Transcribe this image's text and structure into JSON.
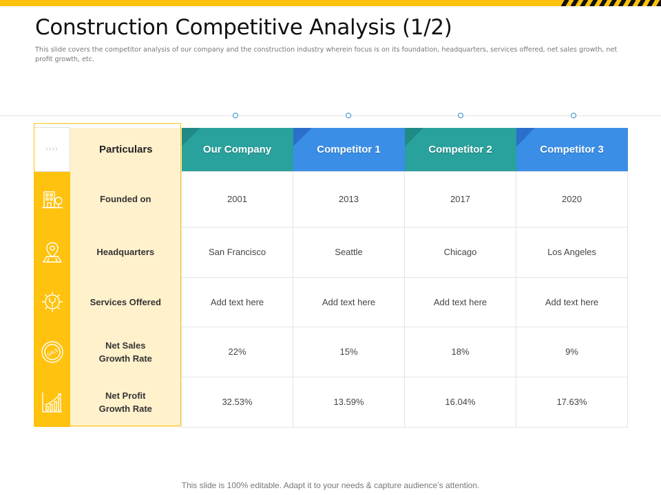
{
  "slide": {
    "title": "Construction Competitive Analysis (1/2)",
    "subtitle": "This slide covers the competitor analysis of our company and the construction industry wherein focus is on its foundation, headquarters, services offered, net sales growth, net profit growth, etc.",
    "footer": "This slide is 100% editable. Adapt it to your needs & capture audience’s attention."
  },
  "colors": {
    "accent_yellow": "#FFC20E",
    "light_yellow": "#FFF1CC",
    "teal": "#29A19C",
    "blue": "#3A8EE6"
  },
  "table": {
    "arrow_glyph": "››››",
    "header_label": "Particulars",
    "columns": [
      "Our Company",
      "Competitor 1",
      "Competitor 2",
      "Competitor 3"
    ],
    "rows": [
      {
        "label_lines": [
          "Founded on"
        ],
        "icon": "building-icon",
        "values": [
          "2001",
          "2013",
          "2017",
          "2020"
        ]
      },
      {
        "label_lines": [
          "Headquarters"
        ],
        "icon": "location-pin-icon",
        "values": [
          "San Francisco",
          "Seattle",
          "Chicago",
          "Los Angeles"
        ]
      },
      {
        "label_lines": [
          "Services Offered"
        ],
        "icon": "gear-wrench-icon",
        "values": [
          "Add text here",
          "Add text here",
          "Add text here",
          "Add text here"
        ]
      },
      {
        "label_lines": [
          "Net Sales",
          "Growth Rate"
        ],
        "icon": "sale-badge-icon",
        "values": [
          "22%",
          "15%",
          "18%",
          "9%"
        ]
      },
      {
        "label_lines": [
          "Net Profit",
          "Growth Rate"
        ],
        "icon": "growth-chart-icon",
        "values": [
          "32.53%",
          "13.59%",
          "16.04%",
          "17.63%"
        ]
      }
    ]
  }
}
